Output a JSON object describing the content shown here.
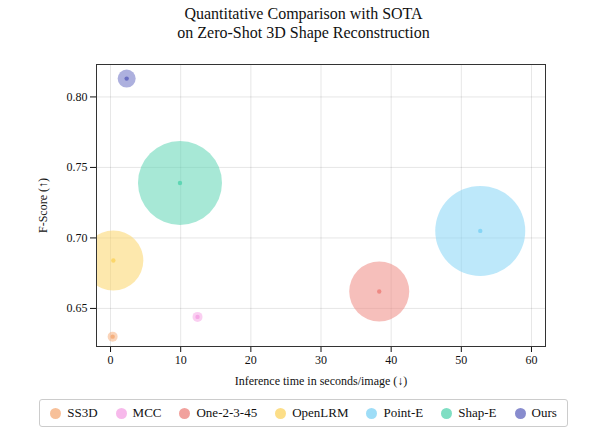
{
  "chart_data": {
    "type": "scatter",
    "title": "Quantitative Comparison with SOTA\non Zero-Shot 3D Shape Reconstruction",
    "x_label": "Inference time in seconds/image (↓)",
    "y_label": "F-Score (↑)",
    "xlim": [
      -2,
      62
    ],
    "xticks": [
      0,
      10,
      20,
      30,
      40,
      50,
      60
    ],
    "ylim": [
      0.623,
      0.823
    ],
    "yticks": [
      0.65,
      {
        "value": 0.7,
        "label": "0.70"
      },
      0.75,
      {
        "value": 0.8,
        "label": "0.80"
      }
    ],
    "grid": true,
    "legend": "bottom",
    "series": [
      {
        "name": "SS3D",
        "color": "#f5b07f",
        "x": 0.3,
        "y": 0.63,
        "size": 25
      },
      {
        "name": "MCC",
        "color": "#f5a8e6",
        "x": 12.4,
        "y": 0.644,
        "size": 25
      },
      {
        "name": "One-2-3-45",
        "color": "#ee8a84",
        "x": 38.3,
        "y": 0.662,
        "size": 900
      },
      {
        "name": "OpenLRM",
        "color": "#fbd66a",
        "x": 0.4,
        "y": 0.684,
        "size": 900
      },
      {
        "name": "Point-E",
        "color": "#86d5f5",
        "x": 52.7,
        "y": 0.705,
        "size": 2025
      },
      {
        "name": "Shap-E",
        "color": "#5fd6b4",
        "x": 9.9,
        "y": 0.739,
        "size": 1764
      },
      {
        "name": "Ours",
        "color": "#6a6fc2",
        "x": 2.3,
        "y": 0.813,
        "size": 81
      }
    ]
  }
}
